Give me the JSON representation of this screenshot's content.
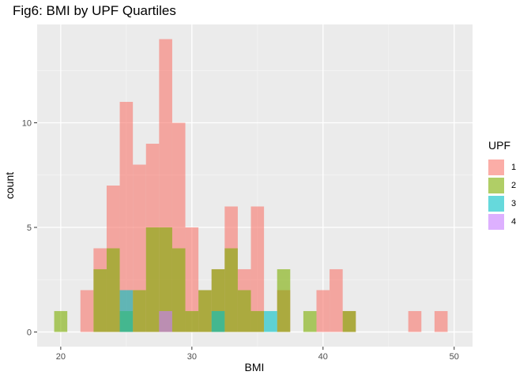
{
  "chart_data": {
    "type": "bar",
    "title": "Fig6: BMI by UPF Quartiles",
    "xlabel": "BMI",
    "ylabel": "count",
    "xlim": [
      18.2,
      51.4
    ],
    "ylim": [
      -0.7,
      14.7
    ],
    "xticks": [
      20,
      30,
      40,
      50
    ],
    "yticks": [
      0,
      5,
      10
    ],
    "bin_width": 1,
    "legend_title": "UPF",
    "legend_position": "right",
    "grid": true,
    "series": [
      {
        "name": "1",
        "color": "#F8766D",
        "bins": [
          [
            22,
            2
          ],
          [
            23,
            4
          ],
          [
            24,
            7
          ],
          [
            25,
            11
          ],
          [
            26,
            8
          ],
          [
            27,
            9
          ],
          [
            28,
            14
          ],
          [
            29,
            10
          ],
          [
            30,
            5
          ],
          [
            31,
            2
          ],
          [
            32,
            3
          ],
          [
            33,
            6
          ],
          [
            34,
            3
          ],
          [
            35,
            6
          ],
          [
            37,
            2
          ],
          [
            40,
            2
          ],
          [
            41,
            3
          ],
          [
            42,
            1
          ],
          [
            47,
            1
          ],
          [
            49,
            1
          ]
        ]
      },
      {
        "name": "2",
        "color": "#7CAE00",
        "bins": [
          [
            20,
            1
          ],
          [
            23,
            3
          ],
          [
            24,
            4
          ],
          [
            25,
            1
          ],
          [
            26,
            2
          ],
          [
            27,
            5
          ],
          [
            28,
            5
          ],
          [
            29,
            4
          ],
          [
            30,
            1
          ],
          [
            31,
            2
          ],
          [
            32,
            3
          ],
          [
            33,
            4
          ],
          [
            34,
            2
          ],
          [
            35,
            1
          ],
          [
            37,
            3
          ],
          [
            39,
            1
          ],
          [
            42,
            1
          ]
        ]
      },
      {
        "name": "3",
        "color": "#00BFC4",
        "bins": [
          [
            25,
            2
          ],
          [
            32,
            1
          ],
          [
            36,
            1
          ]
        ]
      },
      {
        "name": "4",
        "color": "#C77CFF",
        "bins": [
          [
            28,
            1
          ]
        ]
      }
    ]
  }
}
